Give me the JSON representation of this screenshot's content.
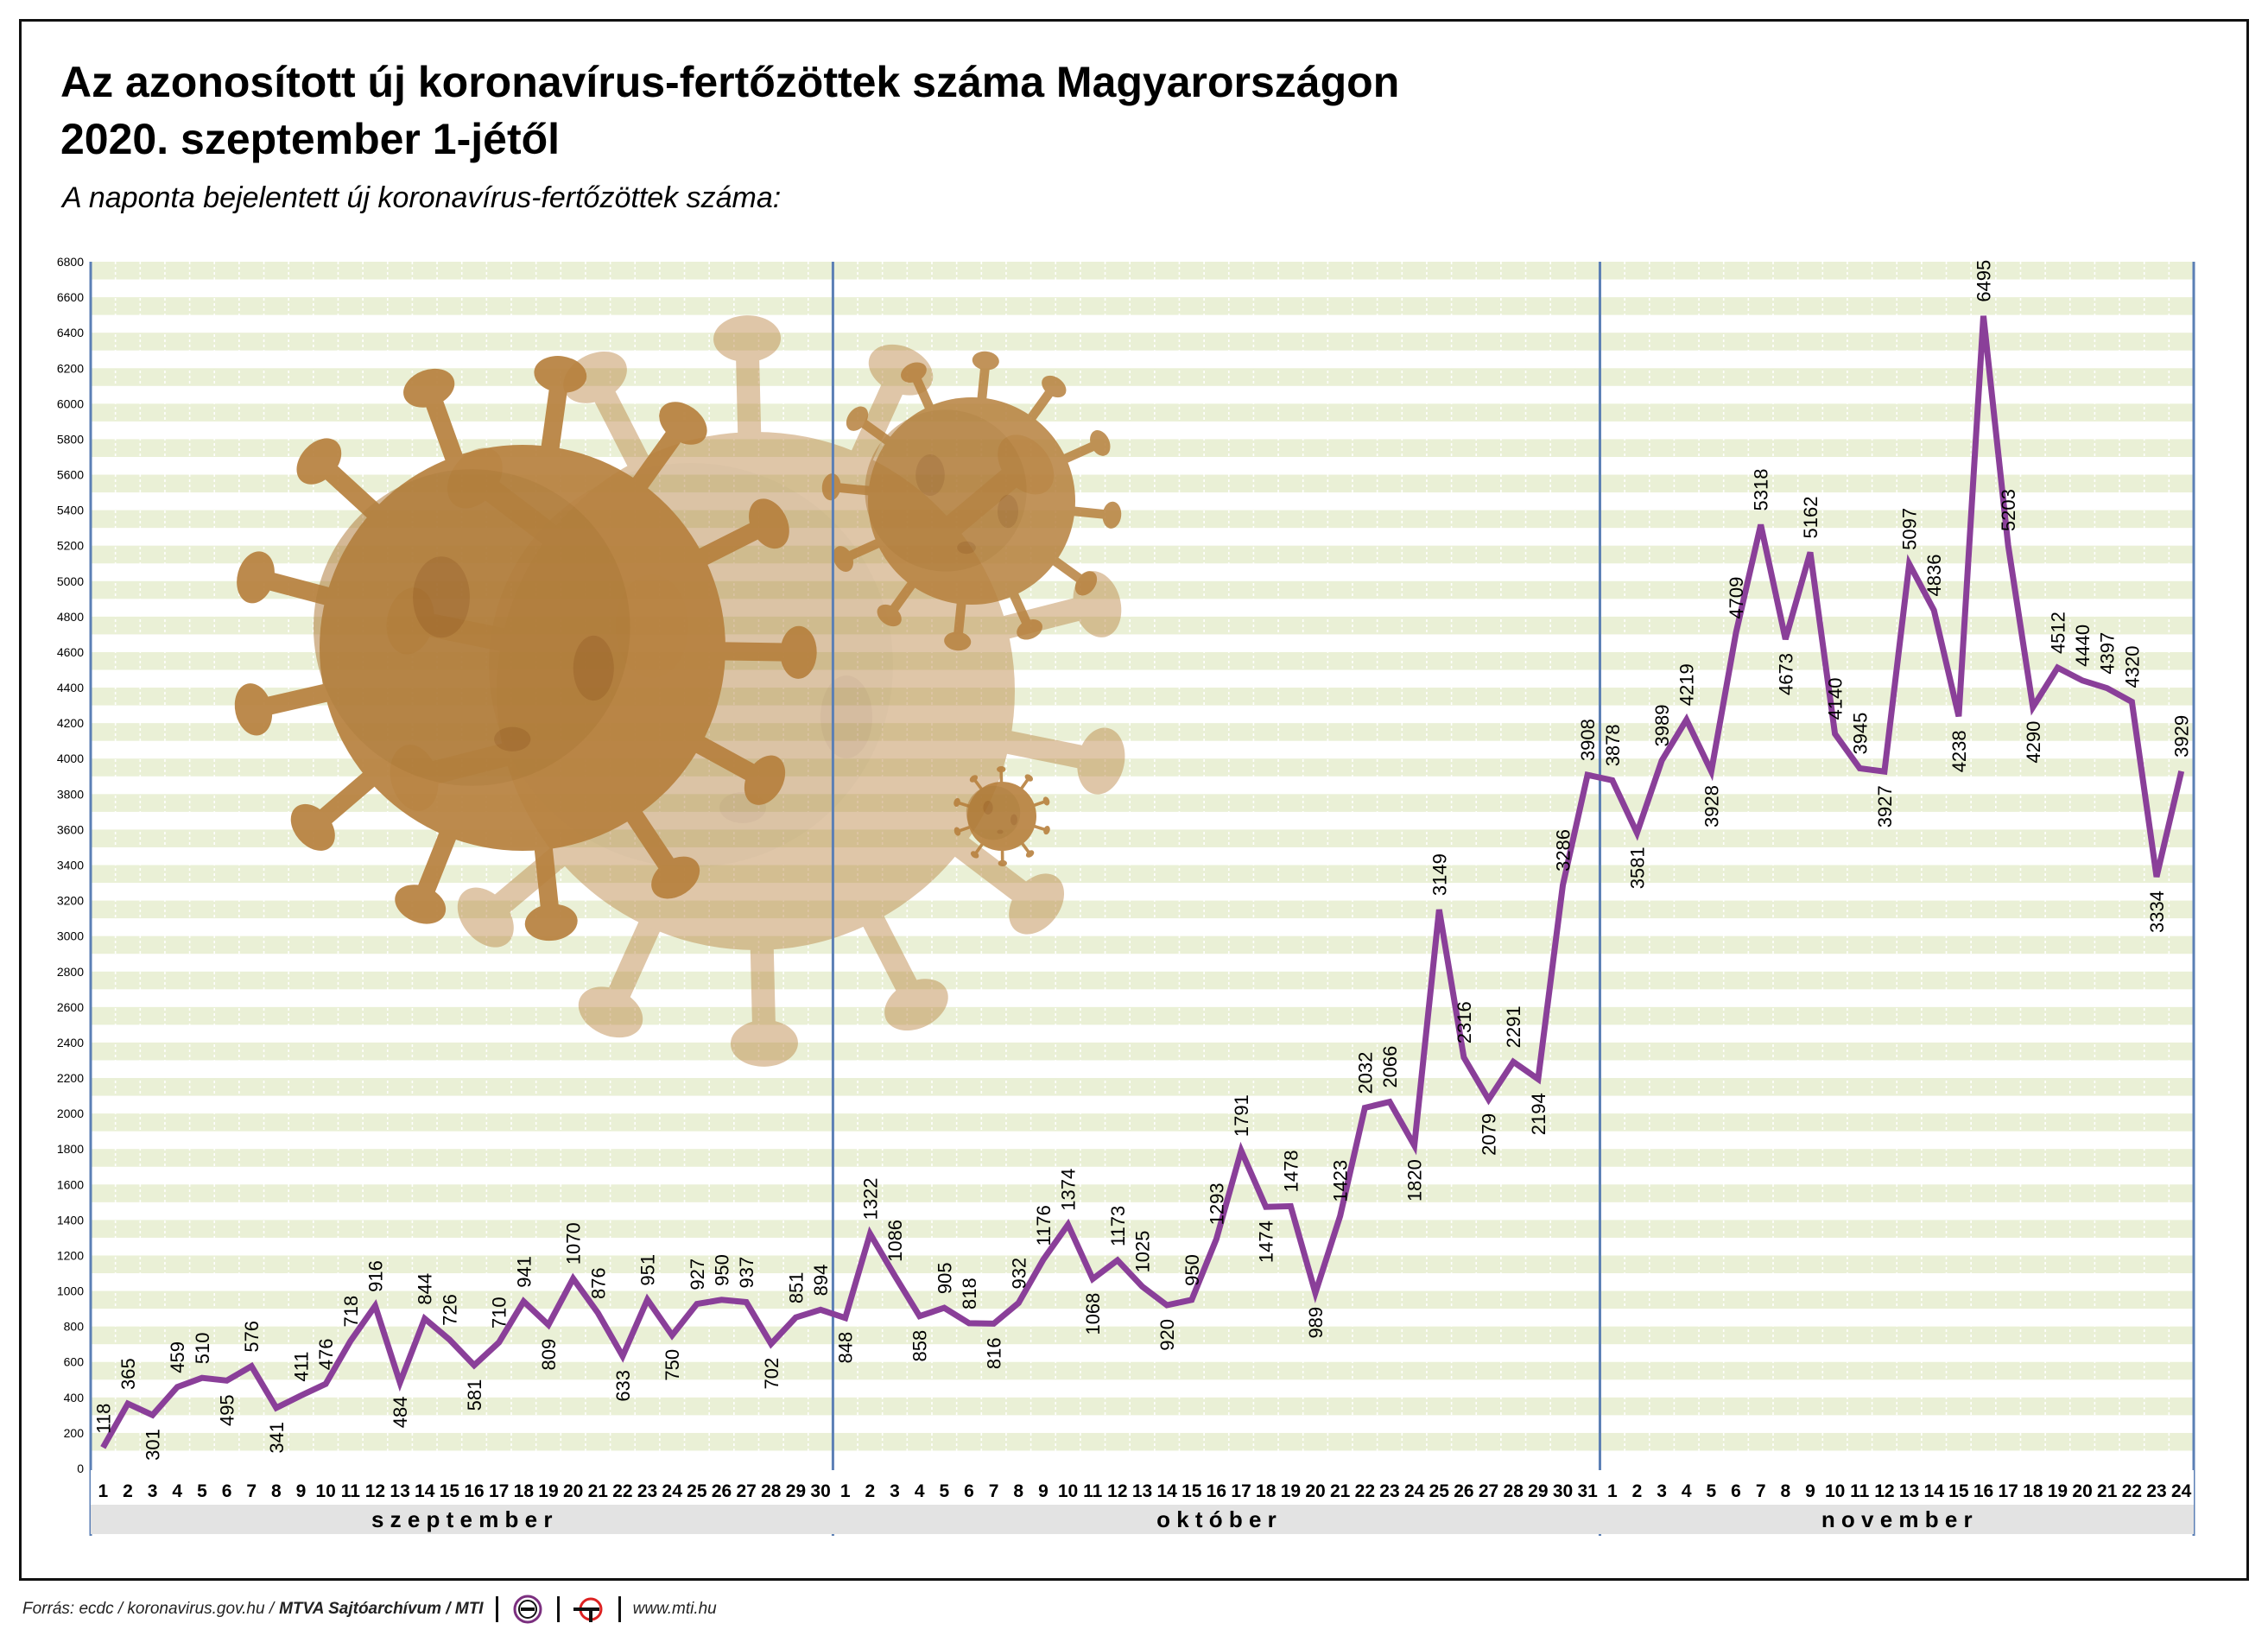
{
  "header": {
    "title_line1": "Az azonosított új koronavírus-fertőzöttek száma Magyarországon",
    "title_line2": "2020. szeptember 1-jétől",
    "subtitle": "A naponta bejelentett új koronavírus-fertőzöttek száma:"
  },
  "footer": {
    "source": "Forrás: ecdc / koronavirus.gov.hu /",
    "credit": "MTVA Sajtóarchívum / MTI",
    "logo1": "mtva-logo-icon",
    "logo2": "mti-logo-icon",
    "website": "www.mti.hu"
  },
  "colors": {
    "line": "#8a3f99",
    "band_light": "#eaf0d6",
    "month_divider": "#5b7fb5",
    "axis_band": "#e3e3e3",
    "virus": "#b7803e"
  },
  "illustration": "coronavirus-illustration",
  "chart_data": {
    "type": "line",
    "title": "Az azonosított új koronavírus-fertőzöttek száma Magyarországon 2020. szeptember 1-jétől",
    "subtitle": "A naponta bejelentett új koronavírus-fertőzöttek száma:",
    "xlabel": "",
    "ylabel": "",
    "ylim": [
      0,
      6800
    ],
    "y_ticks": [
      0,
      200,
      400,
      600,
      800,
      1000,
      1200,
      1400,
      1600,
      1800,
      2000,
      2200,
      2400,
      2600,
      2800,
      3000,
      3200,
      3400,
      3600,
      3800,
      4000,
      4200,
      4400,
      4600,
      4800,
      5000,
      5200,
      5400,
      5600,
      5800,
      6000,
      6200,
      6400,
      6600,
      6800
    ],
    "grid": true,
    "months": [
      {
        "name": "s z e p t e m b e r",
        "days": 30
      },
      {
        "name": "o k t ó b e r",
        "days": 31
      },
      {
        "name": "n o v e m b e r",
        "days": 24
      }
    ],
    "x": [
      "1",
      "2",
      "3",
      "4",
      "5",
      "6",
      "7",
      "8",
      "9",
      "10",
      "11",
      "12",
      "13",
      "14",
      "15",
      "16",
      "17",
      "18",
      "19",
      "20",
      "21",
      "22",
      "23",
      "24",
      "25",
      "26",
      "27",
      "28",
      "29",
      "30",
      "1",
      "2",
      "3",
      "4",
      "5",
      "6",
      "7",
      "8",
      "9",
      "10",
      "11",
      "12",
      "13",
      "14",
      "15",
      "16",
      "17",
      "18",
      "19",
      "20",
      "21",
      "22",
      "23",
      "24",
      "25",
      "26",
      "27",
      "28",
      "29",
      "30",
      "31",
      "1",
      "2",
      "3",
      "4",
      "5",
      "6",
      "7",
      "8",
      "9",
      "10",
      "11",
      "12",
      "13",
      "14",
      "15",
      "16",
      "17",
      "18",
      "19",
      "20",
      "21",
      "22",
      "23",
      "24"
    ],
    "series": [
      {
        "values": [
          118,
          365,
          301,
          459,
          510,
          495,
          576,
          341,
          411,
          476,
          718,
          916,
          484,
          844,
          726,
          581,
          710,
          941,
          809,
          1070,
          876,
          633,
          951,
          750,
          927,
          950,
          937,
          702,
          851,
          894,
          848,
          1322,
          1086,
          858,
          905,
          818,
          816,
          932,
          1176,
          1374,
          1068,
          1173,
          1025,
          920,
          950,
          1293,
          1791,
          1474,
          1478,
          989,
          1423,
          2032,
          2066,
          1820,
          3149,
          2316,
          2079,
          2291,
          2194,
          3286,
          3908,
          3878,
          3581,
          3989,
          4219,
          3928,
          4709,
          5318,
          4673,
          5162,
          4140,
          3945,
          3927,
          5097,
          4836,
          4238,
          6495,
          5203,
          4290,
          4512,
          4440,
          4397,
          4320,
          3334,
          3929
        ],
        "labels": [
          "118",
          "365",
          "301",
          "459",
          "510",
          "495",
          "576",
          "341",
          "411",
          "476",
          "718",
          "916",
          "484",
          "844",
          "726",
          "581",
          "710",
          "941",
          "809",
          "1070",
          "876",
          "633",
          "951",
          "750",
          "927",
          "950",
          "937",
          "702",
          "851",
          "894",
          "848",
          "1322",
          "1086",
          "858",
          "905",
          "818",
          "816",
          "932",
          "1176",
          "1374",
          "1068",
          "1173",
          "1025",
          "920",
          "950",
          "1293",
          "1791",
          "1474",
          "1478",
          "989",
          "1423",
          "2032",
          "2066",
          "1820",
          "3149",
          "2316",
          "2079",
          "2291",
          "2194",
          "3286",
          "3908",
          "3878",
          "3581",
          "3989",
          "4219",
          "3928",
          "4709",
          "5318",
          "4673",
          "5162",
          "4140",
          "3945",
          "3927",
          "5097",
          "4836",
          "4238",
          "6495",
          "5203",
          "4290",
          "4512",
          "4440",
          "4397",
          "4320",
          "3334",
          "3929"
        ]
      }
    ]
  }
}
